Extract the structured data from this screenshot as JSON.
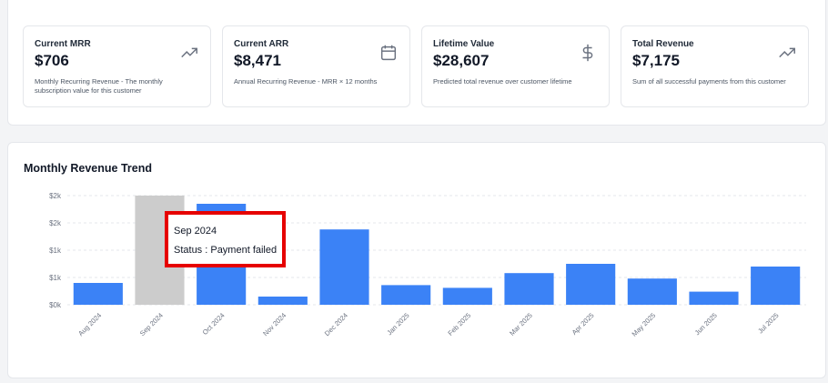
{
  "metrics": [
    {
      "label": "Current MRR",
      "value": "$706",
      "description": "Monthly Recurring Revenue - The monthly subscription value for this customer",
      "icon": "trending-up-icon"
    },
    {
      "label": "Current ARR",
      "value": "$8,471",
      "description": "Annual Recurring Revenue - MRR × 12 months",
      "icon": "calendar-icon"
    },
    {
      "label": "Lifetime Value",
      "value": "$28,607",
      "description": "Predicted total revenue over customer lifetime",
      "icon": "dollar-icon"
    },
    {
      "label": "Total Revenue",
      "value": "$7,175",
      "description": "Sum of all successful payments from this customer",
      "icon": "trending-up-icon"
    }
  ],
  "trend": {
    "title": "Monthly Revenue Trend",
    "tooltip": {
      "month": "Sep 2024",
      "status_text": "Status : Payment failed"
    }
  },
  "colors": {
    "bar": "#3b82f6",
    "failed_bar": "#cccccc",
    "highlight": "#e60000"
  },
  "chart_data": {
    "type": "bar",
    "categories": [
      "Aug 2024",
      "Sep 2024",
      "Oct 2024",
      "Nov 2024",
      "Dec 2024",
      "Jan 2025",
      "Feb 2025",
      "Mar 2025",
      "Apr 2025",
      "May 2025",
      "Jun 2025",
      "Jul 2025"
    ],
    "values": [
      400,
      2000,
      1850,
      150,
      1380,
      360,
      310,
      580,
      750,
      480,
      240,
      700
    ],
    "failed": [
      false,
      true,
      false,
      false,
      false,
      false,
      false,
      false,
      false,
      false,
      false,
      false
    ],
    "ytick_labels": [
      "$0k",
      "$1k",
      "$1k",
      "$2k",
      "$2k"
    ],
    "ytick_values": [
      0,
      500,
      1000,
      1500,
      2000
    ],
    "ylim": [
      0,
      2000
    ],
    "grid": true
  }
}
